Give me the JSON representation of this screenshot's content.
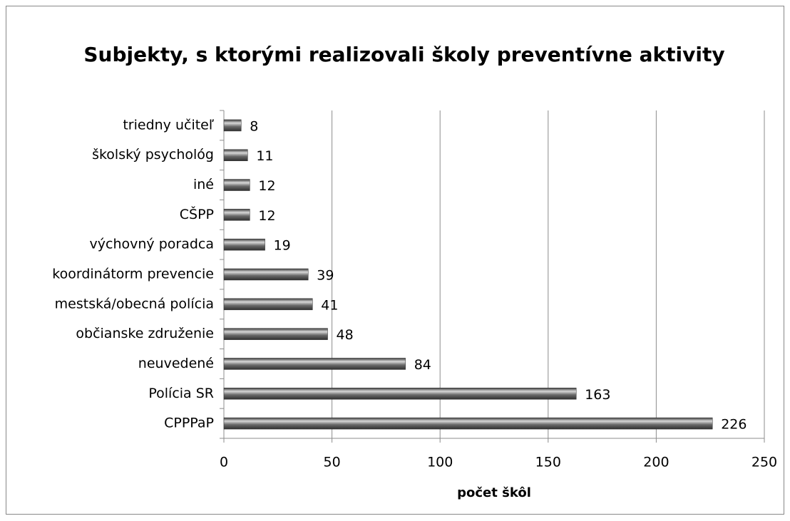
{
  "chart_data": {
    "type": "bar",
    "orientation": "horizontal",
    "title": "Subjekty, s ktorými realizovali školy preventívne aktivity",
    "x_label": "počet škôl",
    "categories": [
      "triedny učiteľ",
      "školský psychológ",
      "iné",
      "CŠPP",
      "výchovný poradca",
      "koordinátorm prevencie",
      "mestská/obecná polícia",
      "občianske združenie",
      "neuvedené",
      "Polícia SR",
      "CPPPaP"
    ],
    "values": [
      8,
      11,
      12,
      12,
      19,
      39,
      41,
      48,
      84,
      163,
      226
    ],
    "color": "#6b6b6b",
    "xlim": [
      0,
      250
    ],
    "xticks": [
      0,
      50,
      100,
      150,
      200,
      250
    ],
    "grid": true
  }
}
